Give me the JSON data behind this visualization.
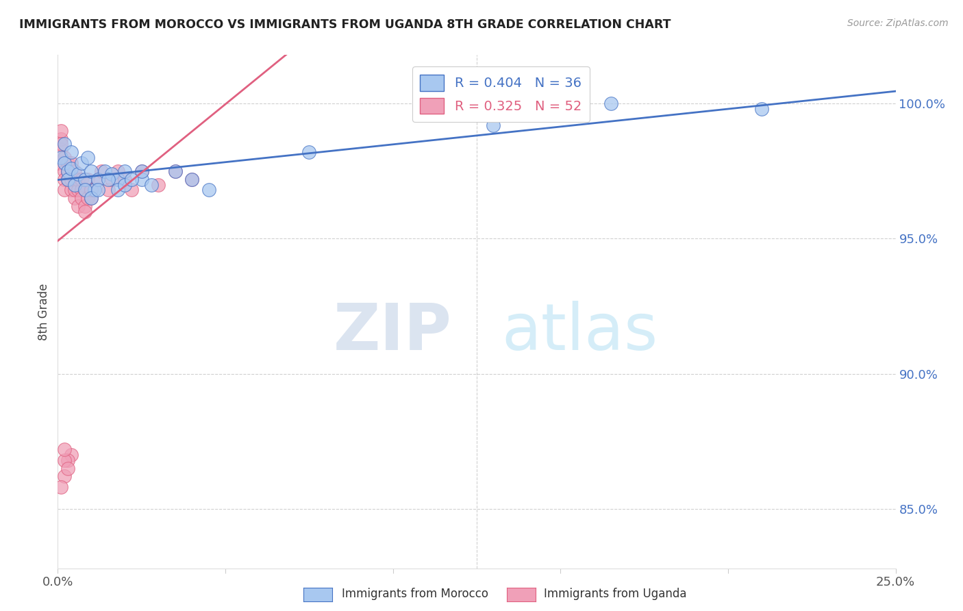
{
  "title": "IMMIGRANTS FROM MOROCCO VS IMMIGRANTS FROM UGANDA 8TH GRADE CORRELATION CHART",
  "source": "Source: ZipAtlas.com",
  "ylabel": "8th Grade",
  "yaxis_labels": [
    "85.0%",
    "90.0%",
    "95.0%",
    "100.0%"
  ],
  "yaxis_values": [
    0.85,
    0.9,
    0.95,
    1.0
  ],
  "xmin": 0.0,
  "xmax": 0.25,
  "ymin": 0.828,
  "ymax": 1.018,
  "legend_morocco": "Immigrants from Morocco",
  "legend_uganda": "Immigrants from Uganda",
  "R_morocco": 0.404,
  "N_morocco": 36,
  "R_uganda": 0.325,
  "N_uganda": 52,
  "color_morocco": "#A8C8F0",
  "color_uganda": "#F0A0B8",
  "trendline_morocco": "#4472C4",
  "trendline_uganda": "#E06080",
  "morocco_x": [
    0.001,
    0.002,
    0.002,
    0.003,
    0.003,
    0.004,
    0.004,
    0.005,
    0.006,
    0.007,
    0.008,
    0.009,
    0.01,
    0.011,
    0.012,
    0.014,
    0.016,
    0.018,
    0.02,
    0.025,
    0.008,
    0.01,
    0.012,
    0.015,
    0.018,
    0.02,
    0.035,
    0.04,
    0.045,
    0.022,
    0.025,
    0.028,
    0.165,
    0.21,
    0.13,
    0.075
  ],
  "morocco_y": [
    0.98,
    0.985,
    0.978,
    0.975,
    0.972,
    0.982,
    0.976,
    0.97,
    0.974,
    0.978,
    0.972,
    0.98,
    0.975,
    0.968,
    0.972,
    0.975,
    0.974,
    0.972,
    0.975,
    0.972,
    0.968,
    0.965,
    0.968,
    0.972,
    0.968,
    0.97,
    0.975,
    0.972,
    0.968,
    0.972,
    0.975,
    0.97,
    1.0,
    0.998,
    0.992,
    0.982
  ],
  "uganda_x": [
    0.0,
    0.001,
    0.001,
    0.001,
    0.001,
    0.002,
    0.002,
    0.002,
    0.002,
    0.003,
    0.003,
    0.003,
    0.004,
    0.004,
    0.004,
    0.005,
    0.005,
    0.005,
    0.005,
    0.006,
    0.006,
    0.006,
    0.007,
    0.007,
    0.007,
    0.008,
    0.008,
    0.009,
    0.009,
    0.01,
    0.01,
    0.011,
    0.012,
    0.013,
    0.015,
    0.016,
    0.018,
    0.02,
    0.022,
    0.025,
    0.03,
    0.035,
    0.04,
    0.008,
    0.01,
    0.004,
    0.003,
    0.002,
    0.001,
    0.002,
    0.002,
    0.003
  ],
  "uganda_y": [
    0.978,
    0.983,
    0.987,
    0.99,
    0.985,
    0.975,
    0.98,
    0.972,
    0.968,
    0.972,
    0.978,
    0.975,
    0.968,
    0.972,
    0.978,
    0.965,
    0.968,
    0.972,
    0.975,
    0.962,
    0.968,
    0.972,
    0.968,
    0.972,
    0.965,
    0.962,
    0.968,
    0.965,
    0.972,
    0.965,
    0.968,
    0.968,
    0.972,
    0.975,
    0.968,
    0.972,
    0.975,
    0.972,
    0.968,
    0.975,
    0.97,
    0.975,
    0.972,
    0.96,
    0.968,
    0.87,
    0.868,
    0.862,
    0.858,
    0.868,
    0.872,
    0.865
  ],
  "watermark_zip": "ZIP",
  "watermark_atlas": "atlas",
  "background_color": "#FFFFFF",
  "grid_color": "#D0D0D0"
}
